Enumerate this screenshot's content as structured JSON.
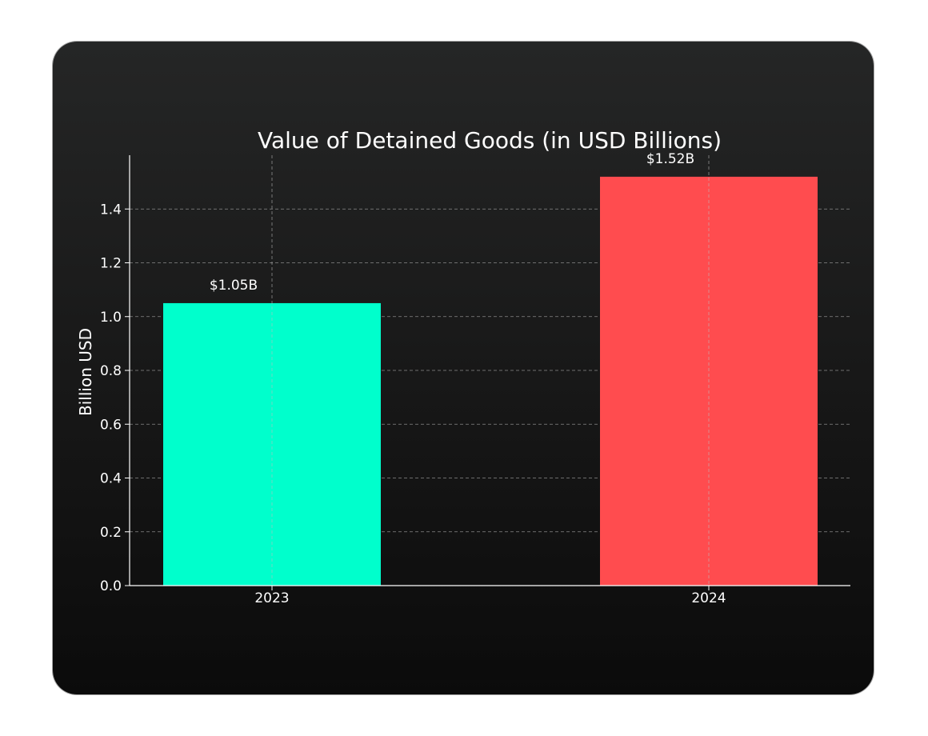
{
  "chart_data": {
    "type": "bar",
    "title": "Value of Detained Goods (in USD Billions)",
    "xlabel": "",
    "ylabel": "Billion USD",
    "categories": [
      "2023",
      "2024"
    ],
    "values": [
      1.05,
      1.52
    ],
    "value_labels": [
      "$1.05B",
      "$1.52B"
    ],
    "colors": [
      "#00FFCC",
      "#FF4C4F"
    ],
    "ylim": [
      0,
      1.6
    ],
    "yticks": [
      {
        "value": 0.0,
        "label": "0.0"
      },
      {
        "value": 0.2,
        "label": "0.2"
      },
      {
        "value": 0.4,
        "label": "0.4"
      },
      {
        "value": 0.6,
        "label": "0.6"
      },
      {
        "value": 0.8,
        "label": "0.8"
      },
      {
        "value": 1.0,
        "label": "1.0"
      },
      {
        "value": 1.2,
        "label": "1.2"
      },
      {
        "value": 1.4,
        "label": "1.4"
      }
    ],
    "grid": true,
    "background": "#1b1b1b",
    "text_color": "#ffffff"
  }
}
